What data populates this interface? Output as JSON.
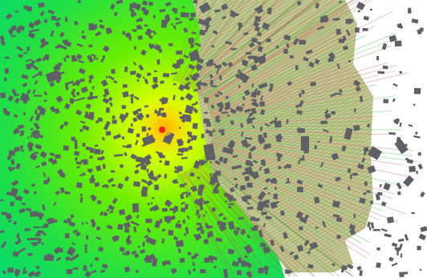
{
  "map": {
    "type": "radio-coverage-heatmap",
    "colors": {
      "background": "#ffffff",
      "coverage_edge": "#00dd66",
      "coverage_mid": "#55ee00",
      "coverage_center": "#ddff00",
      "coverage_hot": "#ff8800",
      "transmitter": "#ee2222",
      "building": "#5f5f66",
      "ray_green": "#2ab52a",
      "ray_red": "#c85050"
    },
    "icons": [
      "transmitter-marker-icon",
      "building-footprint-icon"
    ]
  }
}
